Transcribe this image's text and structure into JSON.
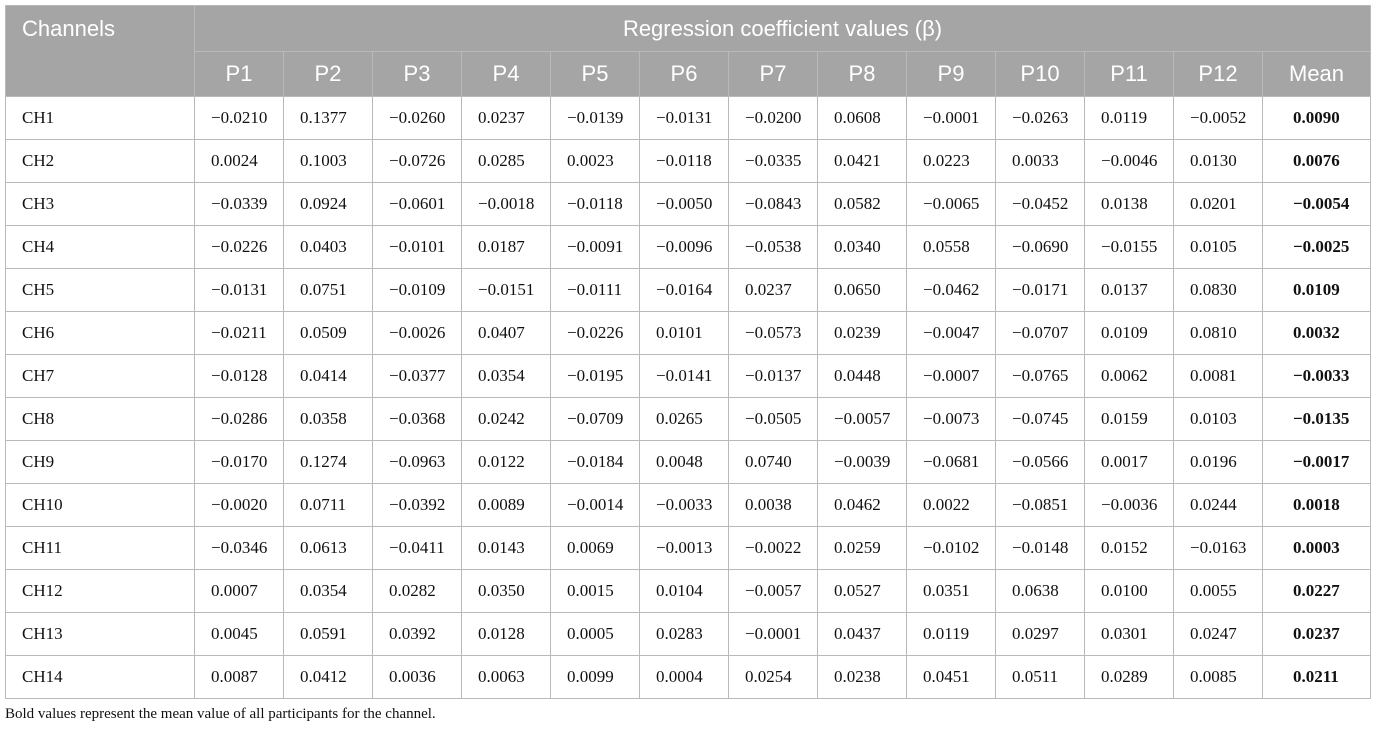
{
  "table": {
    "corner_header": "Channels",
    "group_header": "Regression coefficient values (β)",
    "columns": [
      "P1",
      "P2",
      "P3",
      "P4",
      "P5",
      "P6",
      "P7",
      "P8",
      "P9",
      "P10",
      "P11",
      "P12",
      "Mean"
    ],
    "rows": [
      {
        "channel": "CH1",
        "values": [
          "−0.0210",
          "0.1377",
          "−0.0260",
          "0.0237",
          "−0.0139",
          "−0.0131",
          "−0.0200",
          "0.0608",
          "−0.0001",
          "−0.0263",
          "0.0119",
          "−0.0052",
          "0.0090"
        ]
      },
      {
        "channel": "CH2",
        "values": [
          "0.0024",
          "0.1003",
          "−0.0726",
          "0.0285",
          "0.0023",
          "−0.0118",
          "−0.0335",
          "0.0421",
          "0.0223",
          "0.0033",
          "−0.0046",
          "0.0130",
          "0.0076"
        ]
      },
      {
        "channel": "CH3",
        "values": [
          "−0.0339",
          "0.0924",
          "−0.0601",
          "−0.0018",
          "−0.0118",
          "−0.0050",
          "−0.0843",
          "0.0582",
          "−0.0065",
          "−0.0452",
          "0.0138",
          "0.0201",
          "−0.0054"
        ]
      },
      {
        "channel": "CH4",
        "values": [
          "−0.0226",
          "0.0403",
          "−0.0101",
          "0.0187",
          "−0.0091",
          "−0.0096",
          "−0.0538",
          "0.0340",
          "0.0558",
          "−0.0690",
          "−0.0155",
          "0.0105",
          "−0.0025"
        ]
      },
      {
        "channel": "CH5",
        "values": [
          "−0.0131",
          "0.0751",
          "−0.0109",
          "−0.0151",
          "−0.0111",
          "−0.0164",
          "0.0237",
          "0.0650",
          "−0.0462",
          "−0.0171",
          "0.0137",
          "0.0830",
          "0.0109"
        ]
      },
      {
        "channel": "CH6",
        "values": [
          "−0.0211",
          "0.0509",
          "−0.0026",
          "0.0407",
          "−0.0226",
          "0.0101",
          "−0.0573",
          "0.0239",
          "−0.0047",
          "−0.0707",
          "0.0109",
          "0.0810",
          "0.0032"
        ]
      },
      {
        "channel": "CH7",
        "values": [
          "−0.0128",
          "0.0414",
          "−0.0377",
          "0.0354",
          "−0.0195",
          "−0.0141",
          "−0.0137",
          "0.0448",
          "−0.0007",
          "−0.0765",
          "0.0062",
          "0.0081",
          "−0.0033"
        ]
      },
      {
        "channel": "CH8",
        "values": [
          "−0.0286",
          "0.0358",
          "−0.0368",
          "0.0242",
          "−0.0709",
          "0.0265",
          "−0.0505",
          "−0.0057",
          "−0.0073",
          "−0.0745",
          "0.0159",
          "0.0103",
          "−0.0135"
        ]
      },
      {
        "channel": "CH9",
        "values": [
          "−0.0170",
          "0.1274",
          "−0.0963",
          "0.0122",
          "−0.0184",
          "0.0048",
          "0.0740",
          "−0.0039",
          "−0.0681",
          "−0.0566",
          "0.0017",
          "0.0196",
          "−0.0017"
        ]
      },
      {
        "channel": "CH10",
        "values": [
          "−0.0020",
          "0.0711",
          "−0.0392",
          "0.0089",
          "−0.0014",
          "−0.0033",
          "0.0038",
          "0.0462",
          "0.0022",
          "−0.0851",
          "−0.0036",
          "0.0244",
          "0.0018"
        ]
      },
      {
        "channel": "CH11",
        "values": [
          "−0.0346",
          "0.0613",
          "−0.0411",
          "0.0143",
          "0.0069",
          "−0.0013",
          "−0.0022",
          "0.0259",
          "−0.0102",
          "−0.0148",
          "0.0152",
          "−0.0163",
          "0.0003"
        ]
      },
      {
        "channel": "CH12",
        "values": [
          "0.0007",
          "0.0354",
          "0.0282",
          "0.0350",
          "0.0015",
          "0.0104",
          "−0.0057",
          "0.0527",
          "0.0351",
          "0.0638",
          "0.0100",
          "0.0055",
          "0.0227"
        ]
      },
      {
        "channel": "CH13",
        "values": [
          "0.0045",
          "0.0591",
          "0.0392",
          "0.0128",
          "0.0005",
          "0.0283",
          "−0.0001",
          "0.0437",
          "0.0119",
          "0.0297",
          "0.0301",
          "0.0247",
          "0.0237"
        ]
      },
      {
        "channel": "CH14",
        "values": [
          "0.0087",
          "0.0412",
          "0.0036",
          "0.0063",
          "0.0099",
          "0.0004",
          "0.0254",
          "0.0238",
          "0.0451",
          "0.0511",
          "0.0289",
          "0.0085",
          "0.0211"
        ]
      }
    ]
  },
  "footnote": "Bold values represent the mean value of all participants for the channel.",
  "colors": {
    "header_bg": "#a5a5a5",
    "header_text": "#ffffff",
    "grid": "#b9b9b9"
  }
}
